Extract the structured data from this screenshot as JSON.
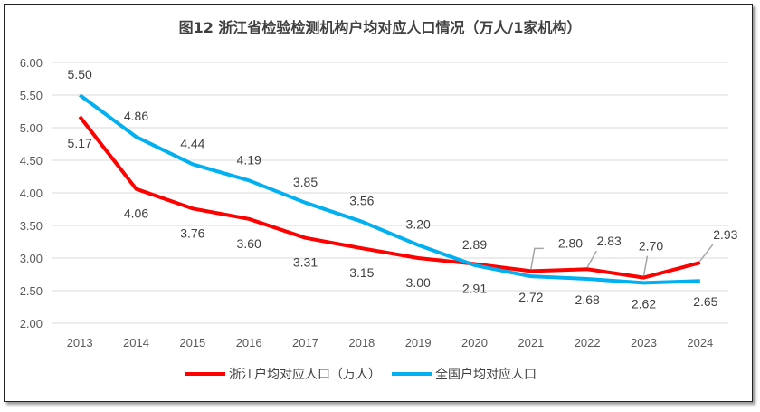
{
  "chart_data": {
    "type": "line",
    "title": "图12  浙江省检验检测机构户均对应人口情况（万人/1家机构）",
    "categories": [
      "2013",
      "2014",
      "2015",
      "2016",
      "2017",
      "2018",
      "2019",
      "2020",
      "2021",
      "2022",
      "2023",
      "2024"
    ],
    "ylim": [
      2.0,
      6.0
    ],
    "yticks": [
      "2.00",
      "2.50",
      "3.00",
      "3.50",
      "4.00",
      "4.50",
      "5.00",
      "5.50",
      "6.00"
    ],
    "grid": true,
    "legend_position": "bottom",
    "series": [
      {
        "name": "浙江户均对应人口（万人）",
        "color": "#FF0000",
        "values": [
          5.17,
          4.06,
          3.76,
          3.6,
          3.31,
          3.15,
          3.0,
          2.91,
          2.8,
          2.83,
          2.7,
          2.93
        ],
        "labels": [
          "5.17",
          "4.06",
          "3.76",
          "3.60",
          "3.31",
          "3.15",
          "3.00",
          "2.91",
          "2.80",
          "2.83",
          "2.70",
          "2.93"
        ]
      },
      {
        "name": "全国户均对应人口",
        "color": "#00B0F0",
        "values": [
          5.5,
          4.86,
          4.44,
          4.19,
          3.85,
          3.56,
          3.2,
          2.89,
          2.72,
          2.68,
          2.62,
          2.65
        ],
        "labels": [
          "5.50",
          "4.86",
          "4.44",
          "4.19",
          "3.85",
          "3.56",
          "3.20",
          "2.89",
          "2.72",
          "2.68",
          "2.62",
          "2.65"
        ]
      }
    ]
  }
}
